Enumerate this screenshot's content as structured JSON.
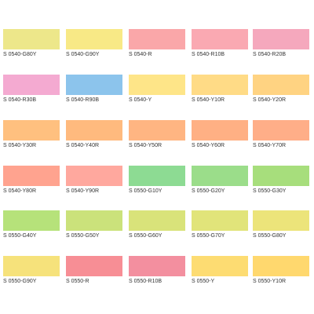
{
  "swatches": [
    {
      "code": "S 0540-G80Y",
      "color": "#EDE78A"
    },
    {
      "code": "S 0540-G90Y",
      "color": "#F8E986"
    },
    {
      "code": "S 0540-R",
      "color": "#FAA7A9"
    },
    {
      "code": "S 0540-R10B",
      "color": "#FAA9B2"
    },
    {
      "code": "S 0540-R20B",
      "color": "#F5A8BD"
    },
    {
      "code": "S 0540-R30B",
      "color": "#F4AAD1"
    },
    {
      "code": "S 0540-R90B",
      "color": "#8CC4EC"
    },
    {
      "code": "S 0540-Y",
      "color": "#FEE588"
    },
    {
      "code": "S 0540-Y10R",
      "color": "#FFDB86"
    },
    {
      "code": "S 0540-Y20R",
      "color": "#FFD382"
    },
    {
      "code": "S 0540-Y30R",
      "color": "#FFC07F"
    },
    {
      "code": "S 0540-Y40R",
      "color": "#FFBA7E"
    },
    {
      "code": "S 0540-Y50R",
      "color": "#FFB582"
    },
    {
      "code": "S 0540-Y60R",
      "color": "#FFB084"
    },
    {
      "code": "S 0540-Y70R",
      "color": "#FFAE88"
    },
    {
      "code": "S 0540-Y80R",
      "color": "#FFA38F"
    },
    {
      "code": "S 0540-Y90R",
      "color": "#FFA89E"
    },
    {
      "code": "S 0550-G10Y",
      "color": "#8DDB93"
    },
    {
      "code": "S 0550-G20Y",
      "color": "#9BDD8A"
    },
    {
      "code": "S 0550-G30Y",
      "color": "#A7DE7C"
    },
    {
      "code": "S 0550-G40Y",
      "color": "#B6E27A"
    },
    {
      "code": "S 0550-G50Y",
      "color": "#CBE27B"
    },
    {
      "code": "S 0550-G60Y",
      "color": "#D9E37A"
    },
    {
      "code": "S 0550-G70Y",
      "color": "#E1E47A"
    },
    {
      "code": "S 0550-G80Y",
      "color": "#ECE47A"
    },
    {
      "code": "S 0550-G90Y",
      "color": "#F6E27B"
    },
    {
      "code": "S 0550-R",
      "color": "#F78E95"
    },
    {
      "code": "S 0550-R10B",
      "color": "#F38F9F"
    },
    {
      "code": "S 0550-Y",
      "color": "#FDDC72"
    },
    {
      "code": "S 0550-Y10R",
      "color": "#FFD86E"
    }
  ]
}
